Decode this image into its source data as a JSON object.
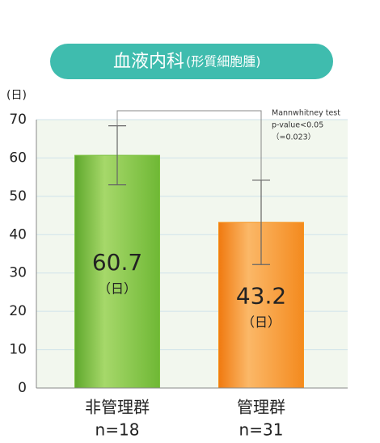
{
  "chart_data": {
    "type": "bar",
    "title": "血液内科",
    "subtitle": "(形質細胞腫)",
    "y_unit": "(日)",
    "categories": [
      "非管理群",
      "管理群"
    ],
    "sample_sizes": [
      "n=18",
      "n=31"
    ],
    "values": [
      60.7,
      43.2
    ],
    "errors": [
      7.7,
      11
    ],
    "value_unit": "（日）",
    "colors": [
      "#7dc242",
      "#f7941d"
    ],
    "annotation": [
      "Mannwhitney test",
      "p-value<0.05",
      "（=0.023）"
    ],
    "ylim": [
      0,
      70
    ],
    "yticks": [
      0,
      10,
      20,
      30,
      40,
      50,
      60,
      70
    ],
    "grid": true
  }
}
